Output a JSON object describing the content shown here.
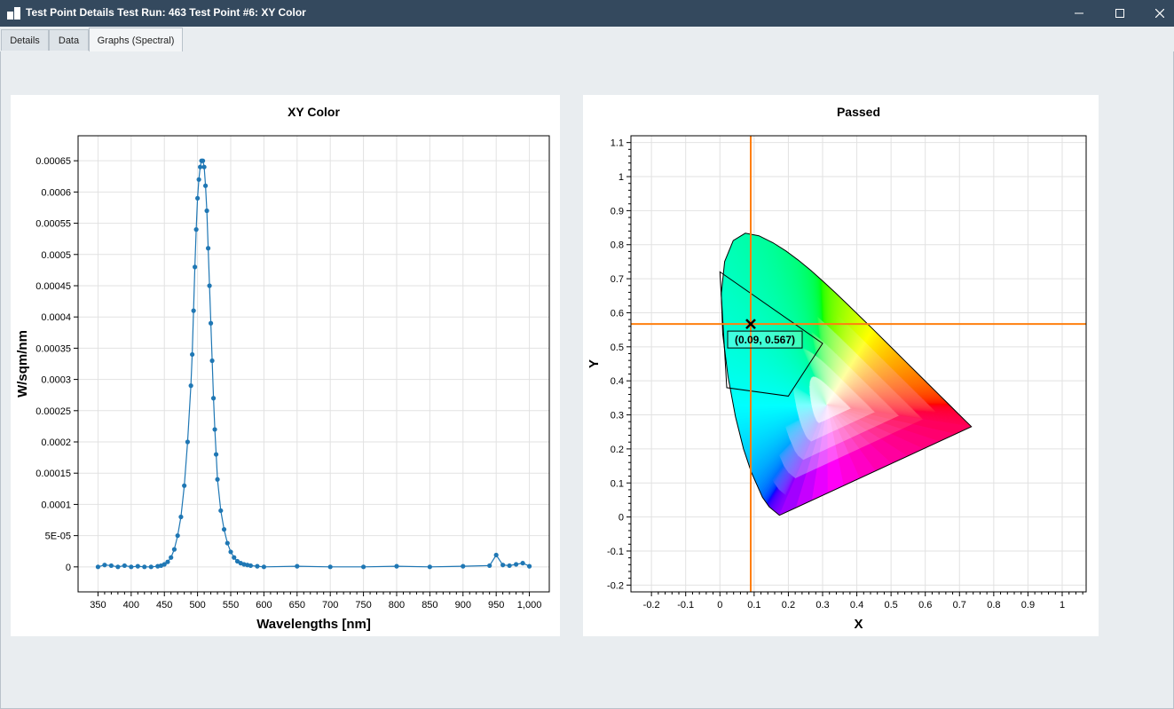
{
  "window": {
    "title": "Test Point Details Test Run: 463 Test Point #6: XY Color"
  },
  "tabs": [
    {
      "label": "Details"
    },
    {
      "label": "Data"
    },
    {
      "label": "Graphs (Spectral)"
    }
  ],
  "colors": {
    "titlebar": "#34495e",
    "series": "#1f77b4",
    "crosshair": "#ff7f0e"
  },
  "chart_data": [
    {
      "type": "line",
      "title": "XY Color",
      "xlabel": "Wavelengths [nm]",
      "ylabel": "W/sqm/nm",
      "xlim": [
        320,
        1030
      ],
      "ylim": [
        -4e-05,
        0.00069
      ],
      "xticks": [
        "350",
        "400",
        "450",
        "500",
        "550",
        "600",
        "650",
        "700",
        "750",
        "800",
        "850",
        "900",
        "950",
        "1,000"
      ],
      "yticks": [
        "0",
        "5E-05",
        "0.0001",
        "0.00015",
        "0.0002",
        "0.00025",
        "0.0003",
        "0.00035",
        "0.0004",
        "0.00045",
        "0.0005",
        "0.00055",
        "0.0006",
        "0.00065"
      ],
      "grid": true,
      "series": [
        {
          "x": [
            350,
            360,
            370,
            380,
            390,
            400,
            410,
            420,
            430,
            440,
            445,
            450,
            455,
            460,
            465,
            470,
            475,
            480,
            485,
            490,
            492,
            494,
            496,
            498,
            500,
            502,
            504,
            506,
            508,
            510,
            512,
            514,
            516,
            518,
            520,
            522,
            524,
            526,
            528,
            530,
            535,
            540,
            545,
            550,
            555,
            560,
            565,
            570,
            575,
            580,
            590,
            600,
            650,
            700,
            750,
            800,
            850,
            900,
            940,
            950,
            960,
            970,
            980,
            990,
            1000
          ],
          "y": [
            0,
            3e-06,
            2e-06,
            0,
            2e-06,
            0,
            1e-06,
            0,
            0,
            1e-06,
            2e-06,
            4e-06,
            8e-06,
            1.5e-05,
            2.8e-05,
            5e-05,
            8e-05,
            0.00013,
            0.0002,
            0.00029,
            0.00034,
            0.00041,
            0.00048,
            0.00054,
            0.00059,
            0.00062,
            0.00064,
            0.00065,
            0.00065,
            0.00064,
            0.00061,
            0.00057,
            0.00051,
            0.00045,
            0.00039,
            0.00033,
            0.00027,
            0.00022,
            0.00018,
            0.00014,
            9e-05,
            6e-05,
            3.8e-05,
            2.4e-05,
            1.5e-05,
            9e-06,
            6e-06,
            4e-06,
            3e-06,
            2e-06,
            1e-06,
            0,
            1e-06,
            0,
            0,
            1e-06,
            0,
            1e-06,
            2e-06,
            1.9e-05,
            3e-06,
            2e-06,
            4e-06,
            6e-06,
            1e-06
          ]
        }
      ]
    },
    {
      "type": "scatter",
      "title": "Passed",
      "xlabel": "X",
      "ylabel": "Y",
      "xlim": [
        -0.26,
        1.07
      ],
      "ylim": [
        -0.22,
        1.12
      ],
      "xticks": [
        "-0.2",
        "-0.1",
        "0",
        "0.1",
        "0.2",
        "0.3",
        "0.4",
        "0.5",
        "0.6",
        "0.7",
        "0.8",
        "0.9",
        "1"
      ],
      "yticks": [
        "-0.2",
        "-0.1",
        "0",
        "0.1",
        "0.2",
        "0.3",
        "0.4",
        "0.5",
        "0.6",
        "0.7",
        "0.8",
        "0.9",
        "1",
        "1.1"
      ],
      "grid": true,
      "spectral_locus": [
        [
          0.1741,
          0.005
        ],
        [
          0.144,
          0.0297
        ],
        [
          0.1241,
          0.0578
        ],
        [
          0.0913,
          0.1327
        ],
        [
          0.0687,
          0.2007
        ],
        [
          0.0454,
          0.295
        ],
        [
          0.0235,
          0.4127
        ],
        [
          0.0082,
          0.5384
        ],
        [
          0.0039,
          0.6548
        ],
        [
          0.0139,
          0.7502
        ],
        [
          0.0389,
          0.812
        ],
        [
          0.0743,
          0.8338
        ],
        [
          0.1142,
          0.8262
        ],
        [
          0.1547,
          0.8059
        ],
        [
          0.1929,
          0.7816
        ],
        [
          0.2296,
          0.7543
        ],
        [
          0.2658,
          0.7243
        ],
        [
          0.3016,
          0.6923
        ],
        [
          0.3373,
          0.6589
        ],
        [
          0.3731,
          0.6245
        ],
        [
          0.4087,
          0.5896
        ],
        [
          0.4441,
          0.5547
        ],
        [
          0.4788,
          0.5202
        ],
        [
          0.5125,
          0.4866
        ],
        [
          0.5448,
          0.4544
        ],
        [
          0.5752,
          0.4242
        ],
        [
          0.6029,
          0.3965
        ],
        [
          0.627,
          0.3725
        ],
        [
          0.6482,
          0.3514
        ],
        [
          0.6658,
          0.334
        ],
        [
          0.6915,
          0.3083
        ],
        [
          0.7347,
          0.2653
        ]
      ],
      "tolerance_polygon": [
        [
          0.0,
          0.72
        ],
        [
          0.3,
          0.51
        ],
        [
          0.2,
          0.355
        ],
        [
          0.02,
          0.38
        ]
      ],
      "point": {
        "x": 0.09,
        "y": 0.567,
        "label": "(0.09, 0.567)"
      }
    }
  ]
}
